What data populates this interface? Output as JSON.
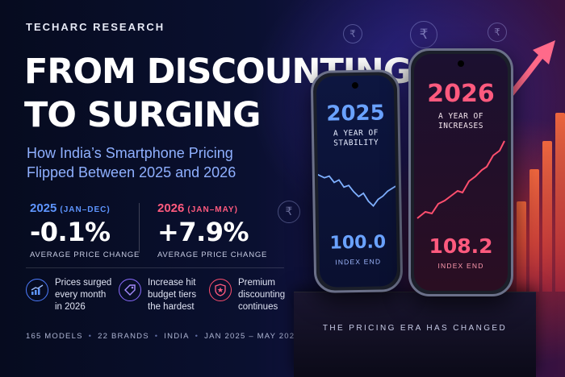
{
  "brand": "TECHARC RESEARCH",
  "title": {
    "line1": "FROM DISCOUNTING",
    "line2": "TO SURGING"
  },
  "subtitle": {
    "line1": "How India’s Smartphone Pricing",
    "line2": "Flipped Between 2025 and 2026"
  },
  "stats": [
    {
      "year": "2025",
      "period": "(JAN–DEC)",
      "value": "-0.1%",
      "caption": "AVERAGE PRICE CHANGE"
    },
    {
      "year": "2026",
      "period": "(JAN–MAY)",
      "value": "+7.9%",
      "caption": "AVERAGE PRICE CHANGE"
    }
  ],
  "features": [
    {
      "icon": "rising-chart-icon",
      "line1": "Prices surged",
      "line2": "every month",
      "line3": "in 2026"
    },
    {
      "icon": "price-tag-icon",
      "line1": "Increase hit",
      "line2": "budget tiers",
      "line3": "the hardest"
    },
    {
      "icon": "star-badge-icon",
      "line1": "Premium",
      "line2": "discounting",
      "line3": "continues"
    }
  ],
  "footer": [
    "165 MODELS",
    "22 BRANDS",
    "INDIA",
    "JAN 2025 – MAY 2026"
  ],
  "phones": [
    {
      "year": "2025",
      "line1": "A YEAR OF",
      "line2": "STABILITY",
      "value": "100.0",
      "caption": "INDEX END"
    },
    {
      "year": "2026",
      "line1": "A YEAR OF",
      "line2": "INCREASES",
      "value": "108.2",
      "caption": "INDEX END"
    }
  ],
  "pedestal": "THE PRICING ERA HAS CHANGED",
  "coin_symbol": "₹",
  "colors": {
    "accent_blue": "#5e95ff",
    "accent_red": "#ff4f6e",
    "subtitle": "#8fb0ff"
  }
}
